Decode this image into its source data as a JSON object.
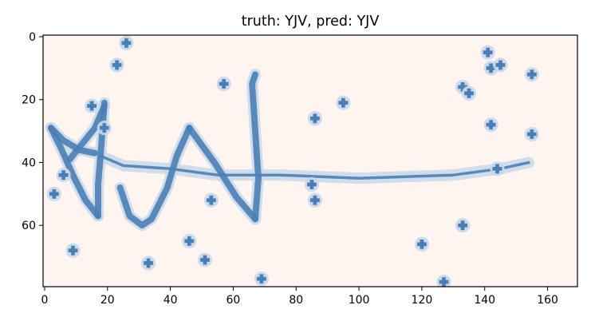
{
  "chart_data": {
    "type": "image",
    "title": "truth: YJV, pred: YJV",
    "xlabel": "",
    "ylabel": "",
    "xlim": [
      -0.5,
      169.5
    ],
    "ylim": [
      79.5,
      -0.5
    ],
    "xticks": [
      0,
      20,
      40,
      60,
      80,
      100,
      120,
      140,
      160
    ],
    "yticks": [
      0,
      20,
      40,
      60
    ],
    "grid": false,
    "colors": {
      "background": "#fff5f0",
      "stroke": "#4a7fb5",
      "halo": "#c9d8ea"
    },
    "strokes": [
      [
        [
          2,
          29
        ],
        [
          5,
          35
        ],
        [
          9,
          44
        ],
        [
          13,
          52
        ],
        [
          17,
          57
        ]
      ],
      [
        [
          19,
          21
        ],
        [
          18,
          35
        ],
        [
          17,
          47
        ],
        [
          17,
          57
        ]
      ],
      [
        [
          8,
          39
        ],
        [
          12,
          34
        ],
        [
          16,
          29
        ],
        [
          19,
          22
        ]
      ],
      [
        [
          16,
          37
        ],
        [
          11,
          36
        ],
        [
          6,
          33
        ],
        [
          2,
          29
        ]
      ],
      [
        [
          24,
          48
        ],
        [
          27,
          57
        ],
        [
          31,
          60
        ],
        [
          34,
          58
        ],
        [
          39,
          48
        ],
        [
          42,
          38
        ],
        [
          46,
          29
        ]
      ],
      [
        [
          46,
          29
        ],
        [
          54,
          40
        ],
        [
          61,
          51
        ],
        [
          67,
          58
        ]
      ],
      [
        [
          67,
          58
        ],
        [
          68,
          45
        ],
        [
          67,
          30
        ],
        [
          66,
          15
        ],
        [
          67,
          12
        ]
      ],
      [
        [
          18,
          38
        ],
        [
          25,
          41
        ],
        [
          40,
          42
        ],
        [
          55,
          44
        ],
        [
          75,
          44
        ],
        [
          100,
          45
        ],
        [
          130,
          44
        ],
        [
          145,
          42
        ],
        [
          154,
          40
        ]
      ]
    ],
    "noise_points": [
      [
        26,
        2
      ],
      [
        23,
        9
      ],
      [
        15,
        22
      ],
      [
        19,
        29
      ],
      [
        6,
        44
      ],
      [
        3,
        50
      ],
      [
        9,
        68
      ],
      [
        33,
        72
      ],
      [
        46,
        65
      ],
      [
        51,
        71
      ],
      [
        53,
        52
      ],
      [
        57,
        15
      ],
      [
        69,
        77
      ],
      [
        85,
        47
      ],
      [
        86,
        52
      ],
      [
        86,
        26
      ],
      [
        95,
        21
      ],
      [
        120,
        66
      ],
      [
        127,
        78
      ],
      [
        133,
        16
      ],
      [
        135,
        18
      ],
      [
        133,
        60
      ],
      [
        141,
        5
      ],
      [
        142,
        10
      ],
      [
        145,
        9
      ],
      [
        155,
        12
      ],
      [
        142,
        28
      ],
      [
        144,
        42
      ],
      [
        155,
        31
      ]
    ]
  }
}
